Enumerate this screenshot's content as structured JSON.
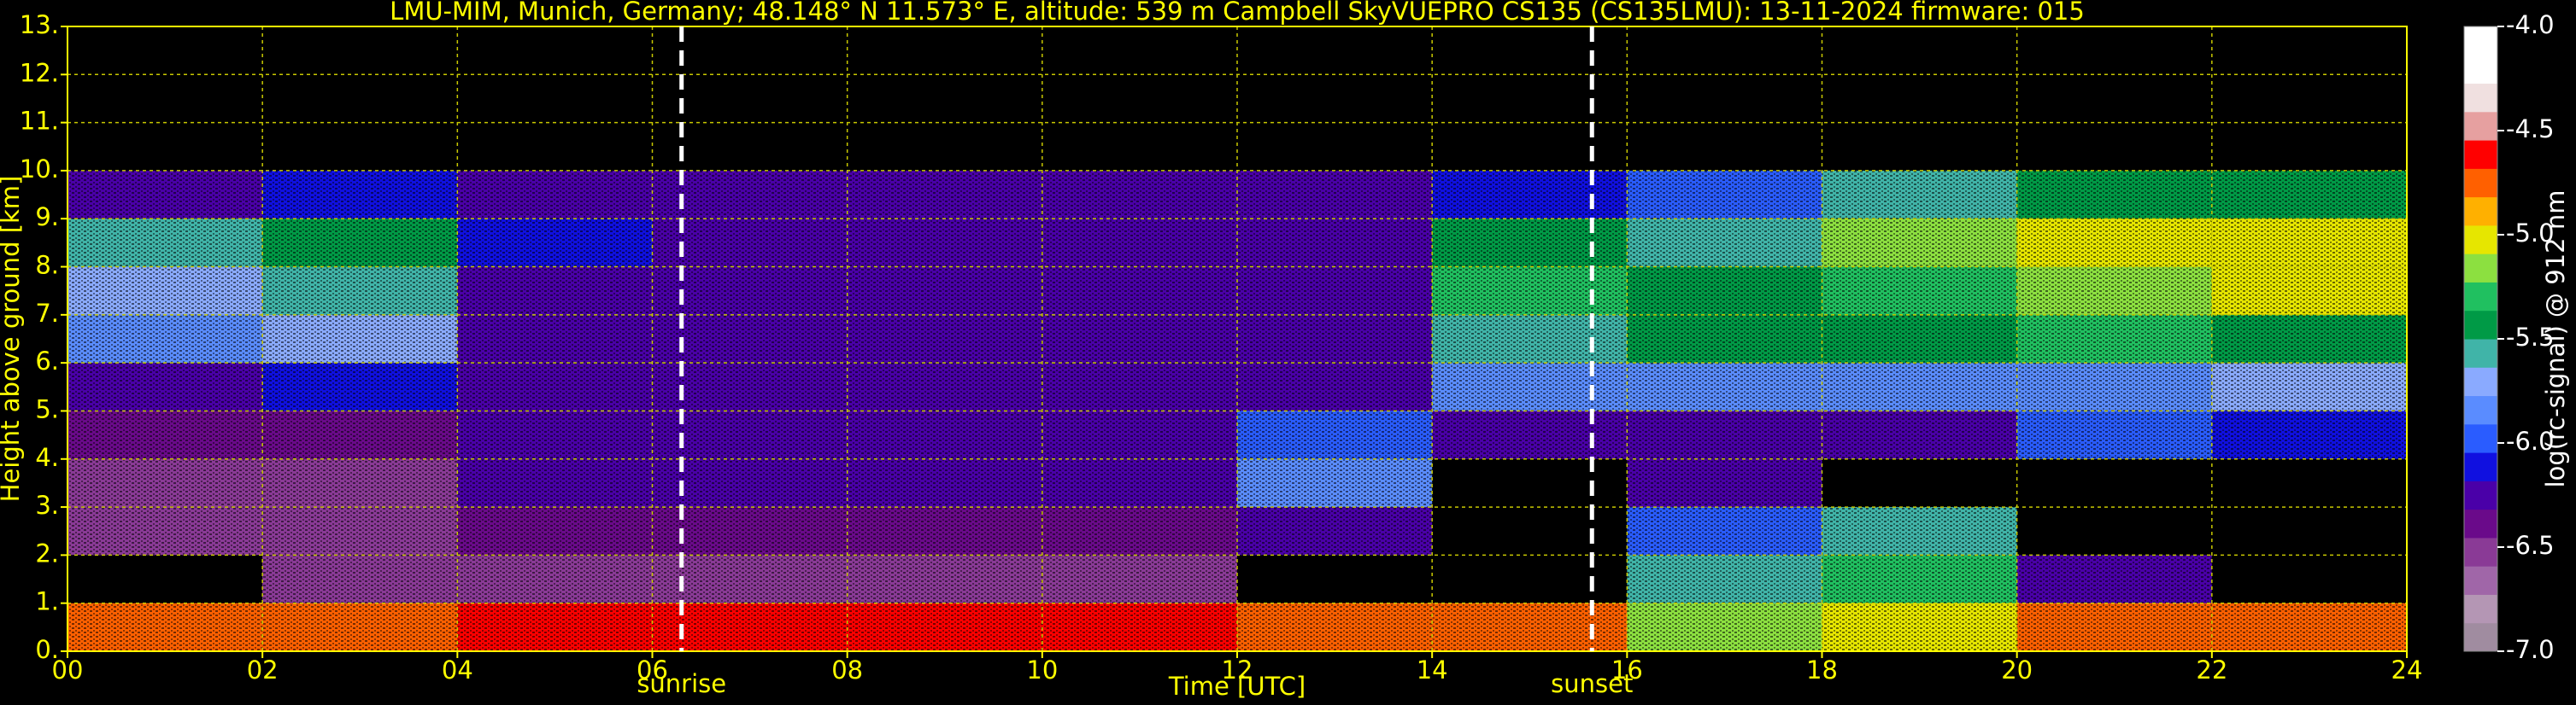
{
  "chart_data": {
    "type": "heatmap",
    "title": "LMU-MIM, Munich, Germany; 48.148° N 11.573° E, altitude: 539 m    Campbell SkyVUEPRO CS135 (CS135LMU): 13-11-2024    firmware: 015",
    "x_label": "Time [UTC]",
    "y_label": "Height above ground [km]",
    "xlim": [
      0,
      24
    ],
    "ylim": [
      0,
      13
    ],
    "xticks": [
      {
        "value": 0,
        "label": "00"
      },
      {
        "value": 2,
        "label": "02"
      },
      {
        "value": 4,
        "label": "04"
      },
      {
        "value": 6,
        "label": "06"
      },
      {
        "value": 8,
        "label": "08"
      },
      {
        "value": 10,
        "label": "10"
      },
      {
        "value": 12,
        "label": "12"
      },
      {
        "value": 14,
        "label": "14"
      },
      {
        "value": 16,
        "label": "16"
      },
      {
        "value": 18,
        "label": "18"
      },
      {
        "value": 20,
        "label": "20"
      },
      {
        "value": 22,
        "label": "22"
      },
      {
        "value": 24,
        "label": "24"
      }
    ],
    "yticks": [
      {
        "value": 0,
        "label": "0."
      },
      {
        "value": 1,
        "label": "1."
      },
      {
        "value": 2,
        "label": "2."
      },
      {
        "value": 3,
        "label": "3."
      },
      {
        "value": 4,
        "label": "4."
      },
      {
        "value": 5,
        "label": "5."
      },
      {
        "value": 6,
        "label": "6."
      },
      {
        "value": 7,
        "label": "7."
      },
      {
        "value": 8,
        "label": "8."
      },
      {
        "value": 9,
        "label": "9."
      },
      {
        "value": 10,
        "label": "10."
      },
      {
        "value": 11,
        "label": "11."
      },
      {
        "value": 12,
        "label": "12."
      },
      {
        "value": 13,
        "label": "13."
      }
    ],
    "grid": true,
    "grid_color": "#c8c800",
    "x_bins": [
      0,
      2,
      4,
      6,
      8,
      10,
      12,
      14,
      16,
      18,
      20,
      22,
      24
    ],
    "y_bins": [
      0,
      1,
      2,
      3,
      4,
      5,
      6,
      7,
      8,
      9,
      10
    ],
    "values": [
      [
        -4.7,
        -4.7,
        -4.6,
        -4.6,
        -4.6,
        -4.6,
        -4.7,
        -4.7,
        -5.2,
        -5.0,
        -4.7,
        -4.7
      ],
      [
        null,
        -6.5,
        -6.5,
        -6.5,
        -6.5,
        -6.5,
        null,
        null,
        -5.6,
        -5.3,
        -6.3,
        null
      ],
      [
        -6.5,
        -6.5,
        -6.4,
        -6.4,
        -6.4,
        -6.4,
        -6.2,
        null,
        -6.0,
        -5.6,
        null,
        null
      ],
      [
        -6.5,
        -6.5,
        -6.3,
        -6.3,
        -6.3,
        -6.3,
        -5.9,
        null,
        -6.3,
        null,
        null,
        null
      ],
      [
        -6.4,
        -6.4,
        -6.3,
        -6.3,
        -6.3,
        -6.3,
        -6.0,
        -6.2,
        -6.3,
        -6.2,
        -6.0,
        -6.1
      ],
      [
        -6.2,
        -6.1,
        -6.3,
        -6.3,
        -6.3,
        -6.3,
        -6.2,
        -5.9,
        -5.8,
        -5.9,
        -5.8,
        -5.7
      ],
      [
        -5.9,
        -5.7,
        -6.2,
        -6.3,
        -6.3,
        -6.3,
        -6.2,
        -5.6,
        -5.5,
        -5.5,
        -5.3,
        -5.4
      ],
      [
        -5.7,
        -5.6,
        -6.2,
        -6.3,
        -6.3,
        -6.3,
        -6.3,
        -5.3,
        -5.4,
        -5.3,
        -5.1,
        -5.0
      ],
      [
        -5.6,
        -5.5,
        -6.1,
        -6.3,
        -6.3,
        -6.3,
        -6.3,
        -5.5,
        -5.6,
        -5.2,
        -5.0,
        -5.0
      ],
      [
        -6.2,
        -6.1,
        -6.2,
        -6.3,
        -6.3,
        -6.3,
        -6.3,
        -6.1,
        -6.0,
        -5.6,
        -5.5,
        -5.4
      ]
    ],
    "annotations": [
      {
        "x": 6.3,
        "label": "sunrise"
      },
      {
        "x": 15.64,
        "label": "sunset"
      }
    ],
    "colorbar": {
      "label": "log(rc-signal) @ 912 nm",
      "lim": [
        -7,
        -4
      ],
      "ticks": [
        {
          "value": -7,
          "label": "-7.0"
        },
        {
          "value": -6.5,
          "label": "-6.5"
        },
        {
          "value": -6,
          "label": "-6.0"
        },
        {
          "value": -5.5,
          "label": "-5.5"
        },
        {
          "value": -5,
          "label": "-5.0"
        },
        {
          "value": -4.5,
          "label": "-4.5"
        },
        {
          "value": -4,
          "label": "-4.0"
        }
      ],
      "colors": [
        "#a08ca0",
        "#b496b4",
        "#a066a8",
        "#8a3a96",
        "#6a0a8a",
        "#4a00a8",
        "#1010e0",
        "#2a5cff",
        "#5a8cff",
        "#8aaaff",
        "#40b4a8",
        "#009a46",
        "#20c060",
        "#8ce040",
        "#e6e600",
        "#ffb000",
        "#ff6000",
        "#ff0000",
        "#e6a0a0",
        "#f0e0e0",
        "#ffffff",
        "#ffffff"
      ]
    }
  }
}
